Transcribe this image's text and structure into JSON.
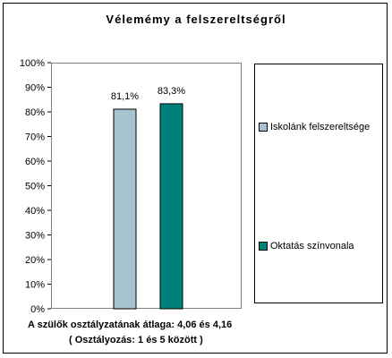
{
  "colors": {
    "series_1": "#a6c4cf",
    "series_2": "#00807d"
  },
  "chart_data": {
    "type": "bar",
    "title": "Vélemémy a felszereltségről",
    "categories": [
      ""
    ],
    "series": [
      {
        "name": "Iskolánk felszereltsége",
        "values": [
          81.1
        ],
        "label": "81,1%"
      },
      {
        "name": "Oktatás színvonala",
        "values": [
          83.3
        ],
        "label": "83,3%"
      }
    ],
    "ylim": [
      0,
      100
    ],
    "yticks": [
      "0%",
      "10%",
      "20%",
      "30%",
      "40%",
      "50%",
      "60%",
      "70%",
      "80%",
      "90%",
      "100%"
    ],
    "grid": false,
    "legend": "right",
    "xlabel": "",
    "ylabel": ""
  },
  "footnotes": {
    "line1": "A szülők osztályzatának átlaga: 4,06 és 4,16",
    "line2": "( Osztályozás: 1 és 5 között )"
  }
}
